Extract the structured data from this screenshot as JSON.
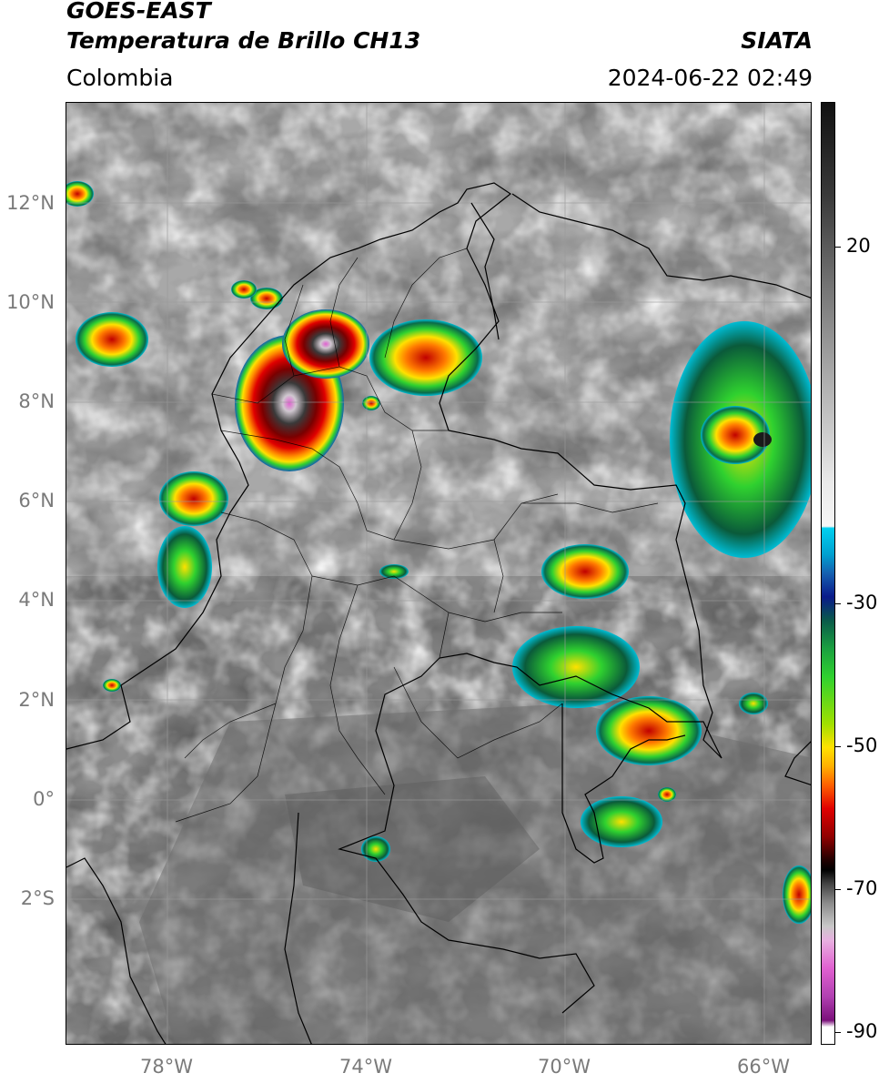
{
  "header": {
    "title_line1": "GOES-EAST",
    "title_line2": "Temperatura de Brillo CH13",
    "brand": "SIATA",
    "region": "Colombia",
    "timestamp": "2024-06-22 02:49"
  },
  "map": {
    "lat_labels": [
      "12°N",
      "10°N",
      "8°N",
      "6°N",
      "4°N",
      "2°N",
      "0°",
      "2°S"
    ],
    "lon_labels": [
      "78°W",
      "74°W",
      "70°W",
      "66°W"
    ]
  },
  "colorbar": {
    "labels": [
      "20",
      "-30",
      "-50",
      "-70",
      "-90"
    ],
    "units_note": "",
    "colors": {
      "grey_warm": "#2a2a2a",
      "grey_cold": "#f2f2f2",
      "cyan": "#00bcd4",
      "blue": "#0a2a8a",
      "green": "#2fd12f",
      "yellow": "#ffe100",
      "orange": "#ff8a00",
      "red": "#e00000",
      "black": "#000000",
      "magenta": "#e060d0",
      "purple": "#8a1a8a"
    }
  }
}
